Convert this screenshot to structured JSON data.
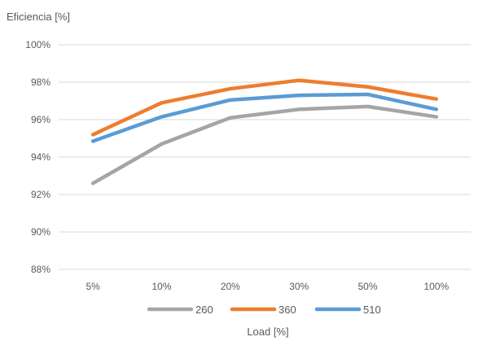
{
  "chart_data": {
    "type": "line",
    "ylabel": "Eficiencia  [%]",
    "xlabel": "Load [%]",
    "categories": [
      "5%",
      "10%",
      "20%",
      "30%",
      "50%",
      "100%"
    ],
    "ylim": [
      88,
      100
    ],
    "yticks": [
      88,
      90,
      92,
      94,
      96,
      98,
      100
    ],
    "ytick_labels": [
      "88%",
      "90%",
      "92%",
      "94%",
      "96%",
      "98%",
      "100%"
    ],
    "grid": true,
    "legend_position": "bottom",
    "series": [
      {
        "name": "260",
        "color": "#a5a5a5",
        "values": [
          92.6,
          94.7,
          96.1,
          96.55,
          96.7,
          96.15
        ]
      },
      {
        "name": "360",
        "color": "#ed7d31",
        "values": [
          95.2,
          96.9,
          97.65,
          98.1,
          97.75,
          97.1
        ]
      },
      {
        "name": "510",
        "color": "#5b9bd5",
        "values": [
          94.85,
          96.15,
          97.05,
          97.3,
          97.35,
          96.55
        ]
      }
    ]
  }
}
